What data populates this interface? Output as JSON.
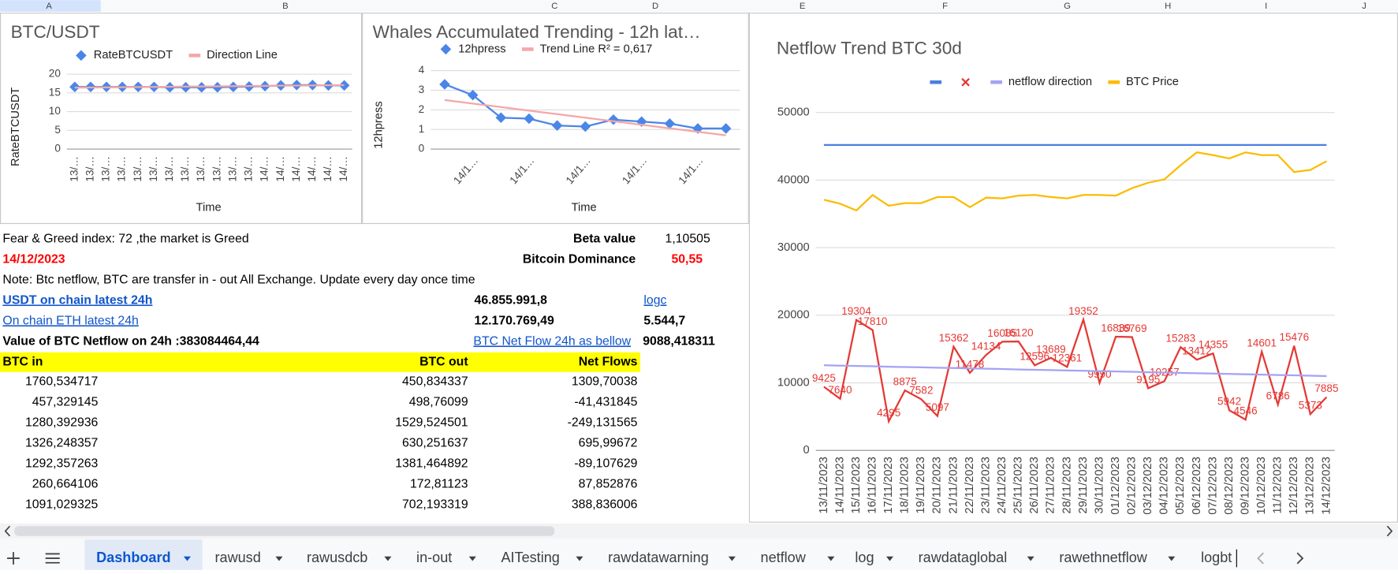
{
  "column_headers": [
    "A",
    "B",
    "C",
    "D",
    "E",
    "F",
    "G",
    "H",
    "I",
    "J"
  ],
  "charts": [
    {
      "type": "line",
      "title": "BTC/USDT",
      "y_label": "RateBTCUSDT",
      "x_label": "Time",
      "categories": [
        "13/…",
        "13/…",
        "13/…",
        "13/…",
        "13/…",
        "13/…",
        "13/…",
        "13/…",
        "13/…",
        "13/…",
        "13/…",
        "13/…",
        "14/…",
        "14/…",
        "14/…",
        "14/…",
        "14/…",
        "14/…"
      ],
      "ylim": [
        0,
        20
      ],
      "yticks": [
        0,
        5,
        10,
        15,
        20
      ],
      "grid": true,
      "series": [
        {
          "name": "RateBTCUSDT",
          "color": "#4a86e8",
          "marker": "diamond",
          "values": [
            16.6,
            16.6,
            16.6,
            16.6,
            16.6,
            16.6,
            16.5,
            16.5,
            16.5,
            16.5,
            16.6,
            16.7,
            16.8,
            17.0,
            17.1,
            17.1,
            17.0,
            17.0
          ]
        },
        {
          "name": "Direction Line",
          "color": "#f4a7a7",
          "values": [
            16.4,
            16.44,
            16.48,
            16.52,
            16.56,
            16.6,
            16.64,
            16.68,
            16.72,
            16.76,
            16.8,
            16.84,
            16.88,
            16.92,
            16.96,
            17.0,
            17.04,
            17.08
          ]
        }
      ]
    },
    {
      "type": "line",
      "title": "Whales Accumulated Trending - 12h lat…",
      "y_label": "12hpress",
      "x_label": "Time",
      "categories": [
        null,
        "14/1…",
        null,
        "14/1…",
        null,
        "14/1…",
        null,
        "14/1…",
        null,
        "14/1…",
        null
      ],
      "ylim": [
        0,
        4
      ],
      "yticks": [
        0,
        1,
        2,
        3,
        4
      ],
      "grid": true,
      "series": [
        {
          "name": "12hpress",
          "color": "#4a86e8",
          "marker": "diamond",
          "values": [
            3.3,
            2.75,
            1.6,
            1.55,
            1.2,
            1.15,
            1.5,
            1.4,
            1.3,
            1.05,
            1.05
          ]
        },
        {
          "name": "Trend Line R² = 0,617",
          "color": "#f4a7a7",
          "values": [
            2.5,
            2.32,
            2.14,
            1.96,
            1.78,
            1.6,
            1.42,
            1.24,
            1.06,
            0.88,
            0.7
          ]
        }
      ]
    },
    {
      "type": "line",
      "title": "Netflow Trend BTC 30d",
      "categories": [
        "13/11/2023",
        "14/11/2023",
        "15/11/2023",
        "16/11/2023",
        "17/11/2023",
        "18/11/2023",
        "19/11/2023",
        "20/11/2023",
        "21/11/2023",
        "22/11/2023",
        "23/11/2023",
        "24/11/2023",
        "25/11/2023",
        "26/11/2023",
        "27/11/2023",
        "28/11/2023",
        "29/11/2023",
        "30/11/2023",
        "01/12/2023",
        "02/12/2023",
        "03/12/2023",
        "04/12/2023",
        "05/12/2023",
        "06/12/2023",
        "07/12/2023",
        "08/12/2023",
        "09/12/2023",
        "10/12/2023",
        "11/12/2023",
        "12/12/2023",
        "13/12/2023",
        "14/12/2023"
      ],
      "ylim": [
        0,
        50000
      ],
      "yticks": [
        0,
        10000,
        20000,
        30000,
        40000,
        50000
      ],
      "grid": true,
      "series": [
        {
          "color": "#4a7fe0",
          "values": [
            45200,
            45200,
            45200,
            45200,
            45200,
            45200,
            45200,
            45200,
            45200,
            45200,
            45200,
            45200,
            45200,
            45200,
            45200,
            45200,
            45200,
            45200,
            45200,
            45200,
            45200,
            45200,
            45200,
            45200,
            45200,
            45200,
            45200,
            45200,
            45200,
            45200,
            45200,
            45200
          ]
        },
        {
          "color": "#e53935",
          "legend_marker": "x",
          "show_labels": true,
          "values": [
            9425,
            7640,
            19304,
            17810,
            4295,
            8875,
            7582,
            5097,
            15362,
            11478,
            14134,
            16085,
            16120,
            12596,
            13689,
            12361,
            19352,
            9990,
            16839,
            16769,
            9195,
            10257,
            15283,
            13412,
            14355,
            5942,
            4546,
            14601,
            6786,
            15476,
            5373,
            7885
          ]
        },
        {
          "name": "netflow direction",
          "color": "#a3a3f5",
          "values": [
            12600,
            12550,
            12500,
            12450,
            12390,
            12340,
            12290,
            12240,
            12190,
            12140,
            12090,
            12040,
            11980,
            11930,
            11880,
            11830,
            11780,
            11730,
            11680,
            11630,
            11570,
            11520,
            11470,
            11420,
            11370,
            11320,
            11270,
            11220,
            11160,
            11110,
            11060,
            11000
          ]
        },
        {
          "name": "BTC Price",
          "color": "#fbbc04",
          "values": [
            37100,
            36500,
            35500,
            37800,
            36200,
            36600,
            36600,
            37500,
            37500,
            36000,
            37400,
            37300,
            37700,
            37800,
            37500,
            37300,
            37800,
            37800,
            37700,
            38800,
            39600,
            40100,
            42200,
            44100,
            43700,
            43200,
            44100,
            43700,
            43700,
            41200,
            41500,
            42800
          ]
        }
      ]
    }
  ],
  "info": {
    "fear_greed": "Fear & Greed index: 72 ,the market is Greed",
    "beta_label": "Beta value",
    "beta_value": "1,10505",
    "date": "14/12/2023",
    "dominance_label": "Bitcoin Dominance",
    "dominance_value": "50,55",
    "note": "Note: Btc netflow, BTC are transfer in - out All Exchange. Update every day once time",
    "usdt_label": "USDT on chain latest 24h",
    "usdt_value": "46.855.991,8",
    "logc": "logc",
    "eth_label": "On chain ETH latest 24h",
    "eth_value": "12.170.769,49",
    "eth_extra": "5.544,7",
    "netflow_label": "Value of BTC Netflow on 24h :383084464,44",
    "netflow_link": "BTC Net Flow 24h as bellow",
    "netflow_value": "9088,418311"
  },
  "table": {
    "header": [
      "BTC in",
      "BTC out",
      "Net Flows"
    ],
    "rows": [
      [
        "1760,534717",
        "450,834337",
        "1309,70038"
      ],
      [
        "457,329145",
        "498,76099",
        "-41,431845"
      ],
      [
        "1280,392936",
        "1529,524501",
        "-249,131565"
      ],
      [
        "1326,248357",
        "630,251637",
        "695,99672"
      ],
      [
        "1292,357263",
        "1381,464892",
        "-89,107629"
      ],
      [
        "260,664106",
        "172,81123",
        "87,852876"
      ],
      [
        "1091,029325",
        "702,193319",
        "388,836006"
      ]
    ]
  },
  "tabs": [
    "Dashboard",
    "rawusd",
    "rawusdcb",
    "in-out",
    "AITesting",
    "rawdatawarning",
    "netflow",
    "log",
    "rawdataglobal",
    "rawethnetflow",
    "logbt"
  ]
}
